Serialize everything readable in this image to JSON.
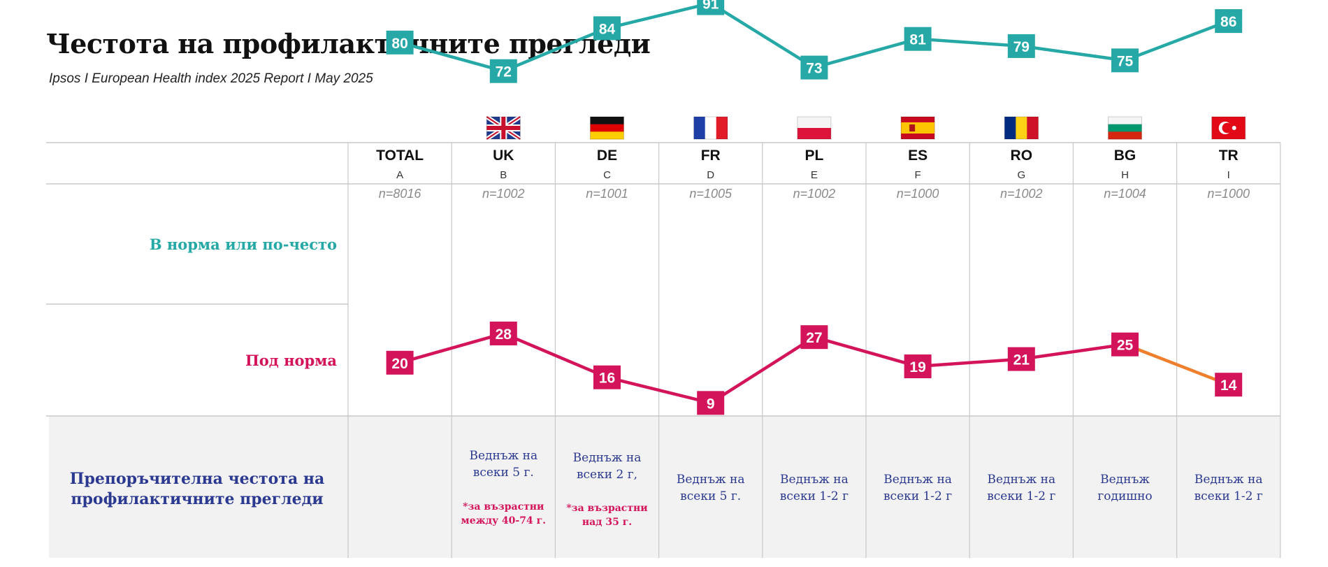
{
  "header": {
    "title": "Честота на профилактичните прегледи",
    "subtitle": "Ipsos I European Health index 2025 Report I May 2025"
  },
  "colors": {
    "teal": "#26a9a6",
    "magenta": "#d4145a",
    "orange": "#f07f2d",
    "navy": "#2b3990",
    "grid": "#c8c8c8",
    "panel": "#f2f2f2"
  },
  "chart_data": {
    "type": "line",
    "categories": [
      "TOTAL",
      "UK",
      "DE",
      "FR",
      "PL",
      "ES",
      "RO",
      "BG",
      "TR"
    ],
    "column_letters": [
      "A",
      "B",
      "C",
      "D",
      "E",
      "F",
      "G",
      "H",
      "I"
    ],
    "sample_sizes": [
      "n=8016",
      "n=1002",
      "n=1001",
      "n=1005",
      "n=1002",
      "n=1000",
      "n=1002",
      "n=1004",
      "n=1000"
    ],
    "flags": [
      "",
      "uk-flag-icon",
      "de-flag-icon",
      "fr-flag-icon",
      "pl-flag-icon",
      "es-flag-icon",
      "ro-flag-icon",
      "bg-flag-icon",
      "tr-flag-icon"
    ],
    "series": [
      {
        "name": "В норма или по-често",
        "color": "#26a9a6",
        "values": [
          80,
          72,
          84,
          91,
          73,
          81,
          79,
          75,
          86
        ]
      },
      {
        "name": "Под норма",
        "color": "#d4145a",
        "values": [
          20,
          28,
          16,
          9,
          27,
          19,
          21,
          25,
          14
        ],
        "last_segment_color": "#f07f2d"
      }
    ],
    "recommendation": {
      "label": [
        "Препоръчителна честота на",
        "профилактичните прегледи"
      ],
      "cells": [
        {
          "text": [],
          "note": []
        },
        {
          "text": [
            "Веднъж на",
            "всеки 5 г."
          ],
          "note": [
            "*за възрастни",
            "между 40-74 г."
          ]
        },
        {
          "text": [
            "Веднъж на",
            "всеки 2 г,"
          ],
          "note": [
            "*за възрастни",
            "над 35 г."
          ]
        },
        {
          "text": [
            "Веднъж на",
            "всеки 5 г."
          ],
          "note": []
        },
        {
          "text": [
            "Веднъж на",
            "всеки 1-2 г"
          ],
          "note": []
        },
        {
          "text": [
            "Веднъж на",
            "всеки 1-2 г"
          ],
          "note": []
        },
        {
          "text": [
            "Веднъж на",
            "всеки 1-2 г"
          ],
          "note": []
        },
        {
          "text": [
            "Веднъж",
            "годишно"
          ],
          "note": []
        },
        {
          "text": [
            "Веднъж на",
            "всеки 1-2 г"
          ],
          "note": []
        }
      ]
    }
  }
}
